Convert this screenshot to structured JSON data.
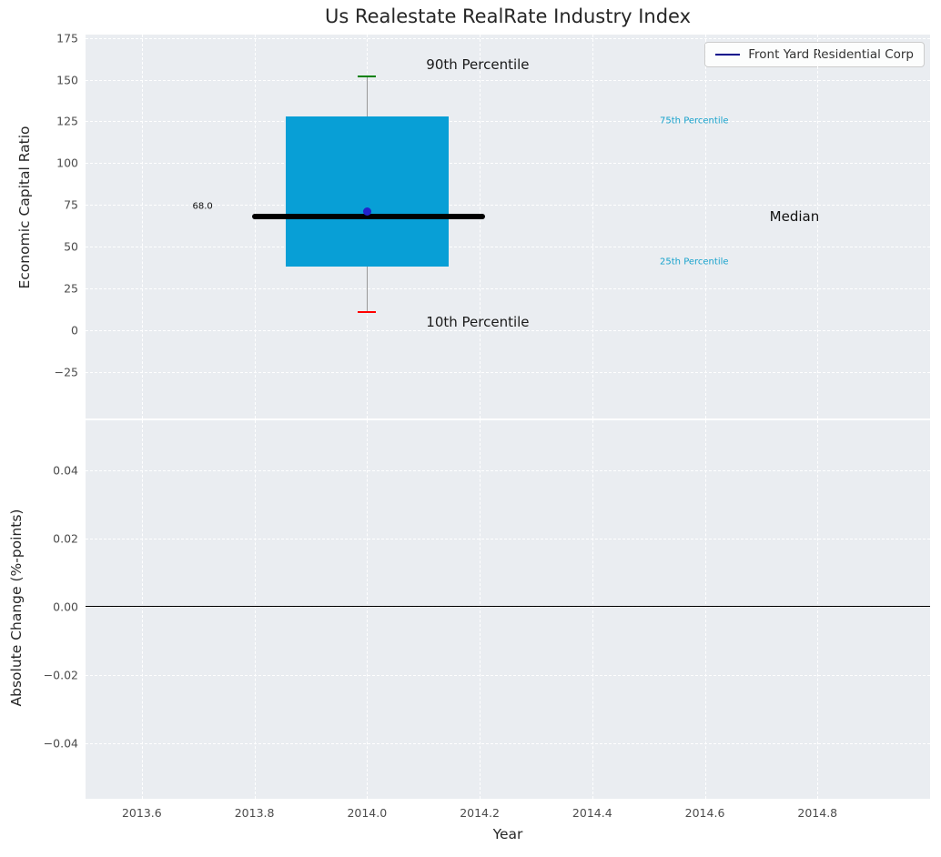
{
  "title": "Us Realestate RealRate Industry Index",
  "legend": {
    "label": "Front Yard Residential Corp",
    "line_color": "#00008b"
  },
  "colors": {
    "axes_bg": "#eaedf1",
    "grid": "#ffffff",
    "box_fill": "#089fd6",
    "median_line": "#000000",
    "whisker": "#999999",
    "cap_top": "#008000",
    "cap_bottom": "#ff0000",
    "marker": "#2222cc",
    "tick_label": "#4c4c4c",
    "percentile_label": "#17a2cc",
    "zero_line": "#000000"
  },
  "chart_data": [
    {
      "type": "boxplot",
      "title": "Us Realestate RealRate Industry Index",
      "ylabel": "Economic Capital Ratio",
      "xlim": [
        2013.5,
        2015.0
      ],
      "ylim": [
        -53,
        177
      ],
      "yticks": [
        {
          "v": 175,
          "label": "175"
        },
        {
          "v": 150,
          "label": "150"
        },
        {
          "v": 125,
          "label": "125"
        },
        {
          "v": 100,
          "label": "100"
        },
        {
          "v": 75,
          "label": "75"
        },
        {
          "v": 50,
          "label": "50"
        },
        {
          "v": 25,
          "label": "25"
        },
        {
          "v": 0,
          "label": "0"
        },
        {
          "v": -25,
          "label": "−25"
        }
      ],
      "xticks": [
        {
          "v": 2013.6,
          "label": "2013.6"
        },
        {
          "v": 2013.8,
          "label": "2013.8"
        },
        {
          "v": 2014.0,
          "label": "2014.0"
        },
        {
          "v": 2014.2,
          "label": "2014.2"
        },
        {
          "v": 2014.4,
          "label": "2014.4"
        },
        {
          "v": 2014.6,
          "label": "2014.6"
        },
        {
          "v": 2014.8,
          "label": "2014.8"
        }
      ],
      "box": {
        "x": 2014.0,
        "p10": 11,
        "p25": 38,
        "median": 68,
        "p75": 128,
        "p90": 152,
        "company_value": 71,
        "box_x0": 2013.855,
        "box_x1": 2014.145,
        "median_x0": 2013.795,
        "median_x1": 2014.21,
        "median_label": "68.0"
      },
      "annotations": [
        {
          "text": "90th Percentile",
          "x": 2014.105,
          "y": 159,
          "color": "#1a1a1a",
          "size": 15
        },
        {
          "text": "10th Percentile",
          "x": 2014.105,
          "y": 5,
          "color": "#1a1a1a",
          "size": 15
        },
        {
          "text": "75th Percentile",
          "x": 2014.52,
          "y": 125,
          "color": "#17a2cc",
          "size": 10
        },
        {
          "text": "25th Percentile",
          "x": 2014.52,
          "y": 41,
          "color": "#17a2cc",
          "size": 10
        },
        {
          "text": "Median",
          "x": 2014.715,
          "y": 68,
          "color": "#111111",
          "size": 15
        },
        {
          "text": "68.0",
          "x": 2013.69,
          "y": 74,
          "color": "#111111",
          "size": 10
        }
      ],
      "legend": [
        "Front Yard Residential Corp"
      ]
    },
    {
      "type": "line",
      "ylabel": "Absolute Change (%-points)",
      "xlabel": "Year",
      "xlim": [
        2013.5,
        2015.0
      ],
      "ylim": [
        -0.0563,
        0.0547
      ],
      "yticks": [
        {
          "v": 0.04,
          "label": "0.04"
        },
        {
          "v": 0.02,
          "label": "0.02"
        },
        {
          "v": 0.0,
          "label": "0.00"
        },
        {
          "v": -0.02,
          "label": "−0.02"
        },
        {
          "v": -0.04,
          "label": "−0.04"
        }
      ],
      "xticks": [
        {
          "v": 2013.6,
          "label": "2013.6"
        },
        {
          "v": 2013.8,
          "label": "2013.8"
        },
        {
          "v": 2014.0,
          "label": "2014.0"
        },
        {
          "v": 2014.2,
          "label": "2014.2"
        },
        {
          "v": 2014.4,
          "label": "2014.4"
        },
        {
          "v": 2014.6,
          "label": "2014.6"
        },
        {
          "v": 2014.8,
          "label": "2014.8"
        }
      ],
      "zero_line": 0.0,
      "series": []
    }
  ]
}
